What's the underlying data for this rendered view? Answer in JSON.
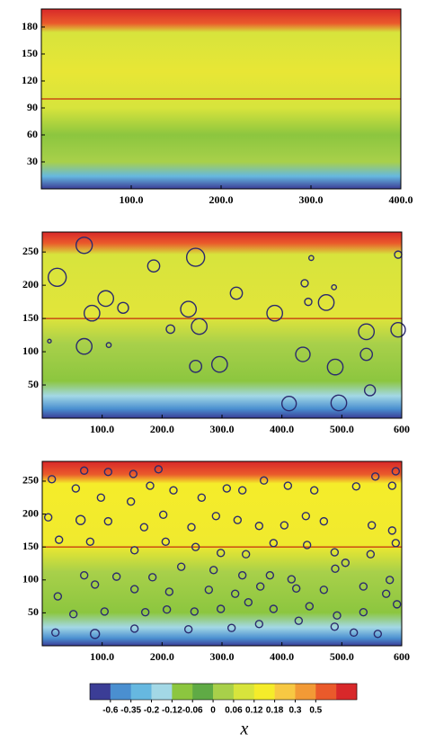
{
  "chart_data": [
    {
      "type": "contour",
      "xlim": [
        0,
        400
      ],
      "ylim": [
        0,
        200
      ],
      "xticks": [
        {
          "value": 100,
          "label": "100.0"
        },
        {
          "value": 200,
          "label": "200.0"
        },
        {
          "value": 300,
          "label": "300.0"
        },
        {
          "value": 400,
          "label": "400.0"
        }
      ],
      "yticks": [
        30,
        60,
        90,
        120,
        150,
        180
      ],
      "hline": 100,
      "hline_color": "#c00000"
    },
    {
      "type": "contour",
      "xlim": [
        0,
        600
      ],
      "ylim": [
        0,
        280
      ],
      "xticks": [
        {
          "value": 100,
          "label": "100.0"
        },
        {
          "value": 200,
          "label": "200.0"
        },
        {
          "value": 300,
          "label": "300.0"
        },
        {
          "value": 400,
          "label": "400.0"
        },
        {
          "value": 500,
          "label": "500.0"
        },
        {
          "value": 600,
          "label": "600"
        }
      ],
      "yticks": [
        50,
        100,
        150,
        200,
        250
      ],
      "hline": 150,
      "hline_color": "#c00000",
      "particles": {
        "color": "#2b2a6e",
        "x": [
          70,
          25,
          106,
          83,
          135,
          186,
          256,
          324,
          244,
          262,
          214,
          70,
          111,
          12,
          256,
          296,
          388,
          435,
          474,
          444,
          541,
          594,
          541,
          489,
          412,
          495,
          547,
          449,
          594,
          438,
          487
        ],
        "y": [
          260,
          212,
          180,
          158,
          166,
          229,
          242,
          188,
          164,
          138,
          134,
          108,
          110,
          116,
          78,
          81,
          158,
          96,
          174,
          175,
          130,
          133,
          96,
          77,
          22,
          23,
          42,
          241,
          246,
          203,
          197
        ],
        "radius": [
          13.5,
          15,
          13,
          13,
          9,
          10,
          15,
          10,
          13,
          13,
          7,
          13,
          4,
          3,
          10,
          13,
          13,
          12,
          13,
          6,
          13,
          12,
          10,
          13,
          12,
          13,
          9,
          4,
          6,
          6,
          4
        ]
      }
    },
    {
      "type": "contour",
      "xlim": [
        0,
        600
      ],
      "ylim": [
        0,
        280
      ],
      "xticks": [
        {
          "value": 100,
          "label": "100.0"
        },
        {
          "value": 200,
          "label": "200.0"
        },
        {
          "value": 300,
          "label": "300.0"
        },
        {
          "value": 400,
          "label": "400.0"
        },
        {
          "value": 500,
          "label": "500.0"
        },
        {
          "value": 600,
          "label": "600"
        }
      ],
      "yticks": [
        50,
        100,
        150,
        200,
        250
      ],
      "hline": 150,
      "hline_color": "#c00000",
      "particles": {
        "color": "#2b2a6e",
        "x": [
          70,
          110,
          152,
          194,
          16,
          56,
          98,
          148,
          180,
          219,
          266,
          308,
          334,
          370,
          410,
          454,
          524,
          556,
          590,
          584,
          10,
          64,
          110,
          170,
          202,
          249,
          290,
          326,
          362,
          404,
          440,
          470,
          550,
          584,
          28,
          80,
          154,
          206,
          256,
          298,
          340,
          386,
          442,
          488,
          548,
          590,
          70,
          124,
          184,
          232,
          286,
          334,
          380,
          416,
          489,
          506,
          580,
          26,
          88,
          154,
          212,
          278,
          322,
          364,
          424,
          470,
          536,
          574,
          52,
          104,
          172,
          208,
          254,
          298,
          344,
          386,
          446,
          492,
          536,
          592,
          22,
          88,
          154,
          244,
          316,
          362,
          428,
          488,
          520,
          560
        ],
        "y": [
          266,
          264,
          261,
          268,
          253,
          239,
          225,
          219,
          243,
          236,
          225,
          239,
          236,
          251,
          243,
          236,
          242,
          257,
          265,
          243,
          195,
          191,
          189,
          180,
          199,
          180,
          197,
          191,
          182,
          183,
          197,
          189,
          183,
          175,
          161,
          158,
          145,
          158,
          150,
          141,
          139,
          156,
          153,
          142,
          139,
          156,
          107,
          105,
          104,
          120,
          115,
          107,
          107,
          101,
          117,
          126,
          100,
          75,
          93,
          86,
          82,
          85,
          79,
          90,
          87,
          85,
          90,
          79,
          48,
          52,
          51,
          55,
          52,
          56,
          66,
          56,
          60,
          46,
          51,
          63,
          20,
          18,
          26,
          25,
          27,
          33,
          38,
          29,
          20,
          18
        ],
        "radius": [
          6,
          6,
          6,
          6,
          6,
          6,
          6,
          6,
          6,
          6,
          6,
          6,
          6,
          6,
          6,
          6,
          6,
          6,
          6,
          6,
          6,
          7.5,
          6,
          6,
          6,
          6,
          6,
          6,
          6,
          6,
          6,
          6,
          6,
          6,
          6,
          6,
          6,
          6,
          6,
          6,
          6,
          6,
          6,
          6,
          6,
          6,
          6,
          6,
          6,
          6,
          6,
          6,
          6,
          6,
          6,
          6,
          6,
          6,
          6,
          6,
          6,
          6,
          6,
          6,
          6,
          6,
          6,
          6,
          6,
          6,
          6,
          6,
          6,
          6,
          6,
          6,
          6,
          6,
          6,
          6,
          6,
          7.5,
          6,
          6,
          6,
          6,
          6,
          6,
          6,
          6
        ]
      }
    }
  ],
  "colorbar": {
    "label": "x",
    "levels": [
      -0.6,
      -0.35,
      -0.2,
      -0.12,
      -0.06,
      0,
      0.06,
      0.12,
      0.18,
      0.3,
      0.5
    ],
    "colors": [
      "#3b3d96",
      "#4a8fd0",
      "#66b8e0",
      "#a3d8e6",
      "#8cc63f",
      "#5faa45",
      "#a8d04a",
      "#d7e43c",
      "#f5ec2a",
      "#f7c843",
      "#f29a36",
      "#ea5a2b",
      "#d8282a"
    ]
  }
}
